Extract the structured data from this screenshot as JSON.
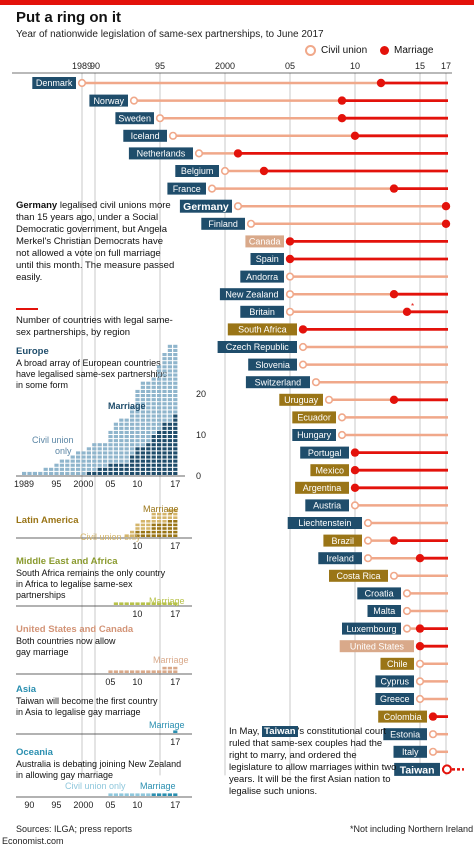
{
  "header": {
    "title": "Put a ring on it",
    "subtitle": "Year of nationwide legislation of same-sex partnerships, to June 2017"
  },
  "legend": {
    "civil_union": "Civil union",
    "marriage": "Marriage"
  },
  "colors": {
    "civil_union": "#f0a88a",
    "marriage": "#e3120b",
    "europe": "#1f4d6b",
    "latin_america": "#9a7517",
    "us_canada": "#d9a98a",
    "asia": "#1f4d6b",
    "africa": "#9a7517"
  },
  "notes": {
    "germany": "Germany legalised civil unions more than 15 years ago, under a Social Democratic government, but Angela Merkel's Christian Democrats have not allowed a vote on full marriage until this month. The measure passed easily.",
    "germany_bold": "Germany",
    "taiwan": "In May, Taiwan's constitutional court ruled that same-sex couples had the right to marry, and ordered the legislature to allow marriages within two years. It will be the first Asian nation to legalise such unions.",
    "taiwan_bold": "Taiwan",
    "footnote": "*Not including Northern Ireland"
  },
  "chart_data": [
    {
      "type": "timeline",
      "title": "Put a ring on it",
      "xlim": [
        1989,
        2017
      ],
      "tick_labels": [
        "1989",
        "90",
        "95",
        "2000",
        "05",
        "10",
        "15",
        "17"
      ],
      "tick_years": [
        1989,
        1990,
        1995,
        2000,
        2005,
        2010,
        2015,
        2017
      ],
      "countries": [
        {
          "name": "Denmark",
          "region": "europe",
          "civil_union": 1989,
          "marriage": 2012
        },
        {
          "name": "Norway",
          "region": "europe",
          "civil_union": 1993,
          "marriage": 2009
        },
        {
          "name": "Sweden",
          "region": "europe",
          "civil_union": 1995,
          "marriage": 2009
        },
        {
          "name": "Iceland",
          "region": "europe",
          "civil_union": 1996,
          "marriage": 2010
        },
        {
          "name": "Netherlands",
          "region": "europe",
          "civil_union": 1998,
          "marriage": 2001
        },
        {
          "name": "Belgium",
          "region": "europe",
          "civil_union": 2000,
          "marriage": 2003
        },
        {
          "name": "France",
          "region": "europe",
          "civil_union": 1999,
          "marriage": 2013
        },
        {
          "name": "Germany",
          "region": "europe",
          "civil_union": 2001,
          "marriage": 2017
        },
        {
          "name": "Finland",
          "region": "europe",
          "civil_union": 2002,
          "marriage": 2017
        },
        {
          "name": "Canada",
          "region": "us_canada",
          "civil_union": null,
          "marriage": 2005
        },
        {
          "name": "Spain",
          "region": "europe",
          "civil_union": null,
          "marriage": 2005
        },
        {
          "name": "Andorra",
          "region": "europe",
          "civil_union": 2005,
          "marriage": null
        },
        {
          "name": "New Zealand",
          "region": "asia",
          "civil_union": 2005,
          "marriage": 2013
        },
        {
          "name": "Britain",
          "region": "europe",
          "civil_union": 2005,
          "marriage": 2014,
          "asterisk": true
        },
        {
          "name": "South Africa",
          "region": "africa",
          "civil_union": null,
          "marriage": 2006
        },
        {
          "name": "Czech Republic",
          "region": "europe",
          "civil_union": 2006,
          "marriage": null
        },
        {
          "name": "Slovenia",
          "region": "europe",
          "civil_union": 2006,
          "marriage": null
        },
        {
          "name": "Switzerland",
          "region": "europe",
          "civil_union": 2007,
          "marriage": null
        },
        {
          "name": "Uruguay",
          "region": "latin_america",
          "civil_union": 2008,
          "marriage": 2013
        },
        {
          "name": "Ecuador",
          "region": "latin_america",
          "civil_union": 2009,
          "marriage": null
        },
        {
          "name": "Hungary",
          "region": "europe",
          "civil_union": 2009,
          "marriage": null
        },
        {
          "name": "Portugal",
          "region": "europe",
          "civil_union": null,
          "marriage": 2010
        },
        {
          "name": "Mexico",
          "region": "latin_america",
          "civil_union": null,
          "marriage": 2010
        },
        {
          "name": "Argentina",
          "region": "latin_america",
          "civil_union": null,
          "marriage": 2010
        },
        {
          "name": "Austria",
          "region": "europe",
          "civil_union": 2010,
          "marriage": null
        },
        {
          "name": "Liechtenstein",
          "region": "europe",
          "civil_union": 2011,
          "marriage": null
        },
        {
          "name": "Brazil",
          "region": "latin_america",
          "civil_union": 2011,
          "marriage": 2013
        },
        {
          "name": "Ireland",
          "region": "europe",
          "civil_union": 2011,
          "marriage": 2015
        },
        {
          "name": "Costa Rica",
          "region": "latin_america",
          "civil_union": 2013,
          "marriage": null
        },
        {
          "name": "Croatia",
          "region": "europe",
          "civil_union": 2014,
          "marriage": null
        },
        {
          "name": "Malta",
          "region": "europe",
          "civil_union": 2014,
          "marriage": null
        },
        {
          "name": "Luxembourg",
          "region": "europe",
          "civil_union": 2014,
          "marriage": 2015
        },
        {
          "name": "United States",
          "region": "us_canada",
          "civil_union": null,
          "marriage": 2015
        },
        {
          "name": "Chile",
          "region": "latin_america",
          "civil_union": 2015,
          "marriage": null
        },
        {
          "name": "Cyprus",
          "region": "europe",
          "civil_union": 2015,
          "marriage": null
        },
        {
          "name": "Greece",
          "region": "europe",
          "civil_union": 2015,
          "marriage": null
        },
        {
          "name": "Colombia",
          "region": "latin_america",
          "civil_union": null,
          "marriage": 2016
        },
        {
          "name": "Estonia",
          "region": "europe",
          "civil_union": 2016,
          "marriage": null
        },
        {
          "name": "Italy",
          "region": "europe",
          "civil_union": 2016,
          "marriage": null
        },
        {
          "name": "Taiwan",
          "region": "asia",
          "civil_union": null,
          "marriage": 2017,
          "pending": true
        }
      ]
    },
    {
      "type": "bar",
      "title": "Number of countries with legal same-sex partnerships, by region",
      "x": [
        1989,
        1990,
        1991,
        1992,
        1993,
        1994,
        1995,
        1996,
        1997,
        1998,
        1999,
        2000,
        2001,
        2002,
        2003,
        2004,
        2005,
        2006,
        2007,
        2008,
        2009,
        2010,
        2011,
        2012,
        2013,
        2014,
        2015,
        2016,
        2017
      ],
      "tick_labels": [
        "1989",
        "95",
        "2000",
        "05",
        "10",
        "17"
      ],
      "regions": [
        {
          "name": "Europe",
          "note": "A broad array of European countries have legalised same-sex partnerships in some form",
          "series": [
            {
              "name": "Civil union only",
              "values": [
                1,
                1,
                1,
                1,
                2,
                2,
                3,
                4,
                4,
                5,
                6,
                6,
                6,
                7,
                6,
                6,
                8,
                10,
                11,
                11,
                12,
                14,
                16,
                15,
                14,
                16,
                17,
                19,
                17
              ]
            },
            {
              "name": "Marriage",
              "values": [
                0,
                0,
                0,
                0,
                0,
                0,
                0,
                0,
                0,
                0,
                0,
                0,
                1,
                1,
                2,
                2,
                3,
                3,
                3,
                3,
                5,
                7,
                7,
                8,
                10,
                11,
                13,
                13,
                15
              ]
            }
          ],
          "ylim": [
            0,
            27
          ],
          "yticks": [
            0,
            10,
            20
          ]
        },
        {
          "name": "Latin America",
          "series": [
            {
              "name": "Civil union only",
              "values": [
                0,
                0,
                0,
                0,
                0,
                0,
                0,
                0,
                0,
                0,
                0,
                0,
                0,
                0,
                0,
                0,
                0,
                0,
                0,
                1,
                2,
                2,
                3,
                3,
                3,
                3,
                3,
                3,
                3
              ]
            },
            {
              "name": "Marriage",
              "values": [
                0,
                0,
                0,
                0,
                0,
                0,
                0,
                0,
                0,
                0,
                0,
                0,
                0,
                0,
                0,
                0,
                0,
                0,
                0,
                0,
                0,
                2,
                2,
                2,
                4,
                4,
                4,
                5,
                5
              ]
            }
          ]
        },
        {
          "name": "Middle East and Africa",
          "note": "South Africa remains the only country in Africa to legalise same-sex partnerships",
          "series": [
            {
              "name": "Marriage",
              "values": [
                0,
                0,
                0,
                0,
                0,
                0,
                0,
                0,
                0,
                0,
                0,
                0,
                0,
                0,
                0,
                0,
                0,
                1,
                1,
                1,
                1,
                1,
                1,
                1,
                1,
                1,
                1,
                1,
                1
              ]
            }
          ]
        },
        {
          "name": "United States and Canada",
          "note": "Both countries now allow gay marriage",
          "series": [
            {
              "name": "Marriage",
              "values": [
                0,
                0,
                0,
                0,
                0,
                0,
                0,
                0,
                0,
                0,
                0,
                0,
                0,
                0,
                0,
                0,
                1,
                1,
                1,
                1,
                1,
                1,
                1,
                1,
                1,
                1,
                2,
                2,
                2
              ]
            }
          ]
        },
        {
          "name": "Asia",
          "note": "Taiwan will become the first country in Asia to legalise gay marriage",
          "series": [
            {
              "name": "Marriage",
              "values": [
                0,
                0,
                0,
                0,
                0,
                0,
                0,
                0,
                0,
                0,
                0,
                0,
                0,
                0,
                0,
                0,
                0,
                0,
                0,
                0,
                0,
                0,
                0,
                0,
                0,
                0,
                0,
                0,
                1
              ]
            }
          ]
        },
        {
          "name": "Oceania",
          "note": "Australia is debating joining New Zealand in allowing gay marriage",
          "series": [
            {
              "name": "Civil union only",
              "values": [
                0,
                0,
                0,
                0,
                0,
                0,
                0,
                0,
                0,
                0,
                0,
                0,
                0,
                0,
                0,
                0,
                1,
                1,
                1,
                1,
                1,
                1,
                1,
                1,
                0,
                0,
                0,
                0,
                0
              ]
            },
            {
              "name": "Marriage",
              "values": [
                0,
                0,
                0,
                0,
                0,
                0,
                0,
                0,
                0,
                0,
                0,
                0,
                0,
                0,
                0,
                0,
                0,
                0,
                0,
                0,
                0,
                0,
                0,
                0,
                1,
                1,
                1,
                1,
                1
              ]
            }
          ]
        }
      ]
    }
  ],
  "small_chart": {
    "title": "Number of countries with legal same-sex partnerships, by region",
    "europe_label_marriage": "Marriage",
    "europe_label_cu1": "Civil union",
    "europe_label_cu2": "only",
    "marriage_label": "Marriage",
    "cu_only_label": "Civil union only",
    "x_ticks_main": [
      "1989",
      "95",
      "2000",
      "05",
      "10",
      "17"
    ],
    "x_ticks_small": [
      "10",
      "17"
    ],
    "x_ticks_us": [
      "05",
      "10",
      "17"
    ],
    "x_ticks_asia": [
      "17"
    ],
    "x_ticks_oceania": [
      "90",
      "95",
      "2000",
      "05",
      "10",
      "17"
    ]
  },
  "footer": {
    "sources": "Sources: ILGA; press reports",
    "brand": "Economist.com"
  }
}
